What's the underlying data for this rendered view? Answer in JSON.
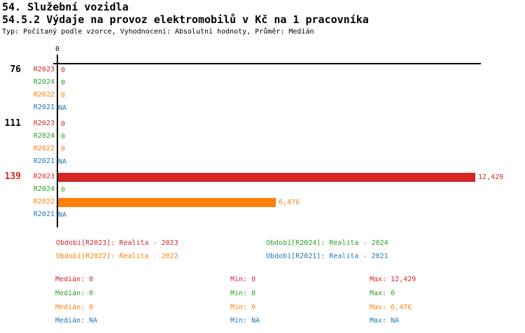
{
  "chart_data": {
    "type": "bar",
    "orientation": "horizontal",
    "title": "54. Služební vozidla",
    "subtitle": "54.5.2 Výdaje na provoz elektromobilů v Kč na 1 pracovníka",
    "meta": "Typ: Počítaný podle vzorce, Vyhodnocení: Absolutní hodnoty, Průměr: Medián",
    "axis": {
      "tick_label": "0",
      "min": 0,
      "max": 12429,
      "grid": false
    },
    "series": [
      {
        "id": "r2023",
        "period": "R2023",
        "legend_label": "Období[R2023]: Realita - 2023",
        "color": "#d62728"
      },
      {
        "id": "r2024",
        "period": "R2024",
        "legend_label": "Období[R2024]: Realita - 2024",
        "color": "#2ca02c"
      },
      {
        "id": "r2022",
        "period": "R2022",
        "legend_label": "Období[R2022]: Realita - 2022",
        "color": "#ff7f0e"
      },
      {
        "id": "r2021",
        "period": "R2021",
        "legend_label": "Období[R2021]: Realita - 2021",
        "color": "#1f77b4"
      }
    ],
    "groups": [
      {
        "label": "76",
        "highlighted": false,
        "rows": [
          {
            "period": "R2023",
            "value": 0,
            "display": "0"
          },
          {
            "period": "R2024",
            "value": 0,
            "display": "0"
          },
          {
            "period": "R2022",
            "value": 0,
            "display": "0"
          },
          {
            "period": "R2021",
            "value": null,
            "display": "NA"
          }
        ]
      },
      {
        "label": "111",
        "highlighted": false,
        "rows": [
          {
            "period": "R2023",
            "value": 0,
            "display": "0"
          },
          {
            "period": "R2024",
            "value": 0,
            "display": "0"
          },
          {
            "period": "R2022",
            "value": 0,
            "display": "0"
          },
          {
            "period": "R2021",
            "value": null,
            "display": "NA"
          }
        ]
      },
      {
        "label": "139",
        "highlighted": true,
        "rows": [
          {
            "period": "R2023",
            "value": 12429,
            "display": "12,429"
          },
          {
            "period": "R2024",
            "value": 0,
            "display": "0"
          },
          {
            "period": "R2022",
            "value": 6476,
            "display": "6,476"
          },
          {
            "period": "R2021",
            "value": null,
            "display": "NA"
          }
        ]
      }
    ],
    "stats_labels": {
      "median": "Medián:",
      "min": "Min:",
      "max": "Max:"
    },
    "stats": [
      {
        "series": "R2023",
        "median": "0",
        "min": "0",
        "max": "12,429"
      },
      {
        "series": "R2024",
        "median": "0",
        "min": "0",
        "max": "0"
      },
      {
        "series": "R2022",
        "median": "0",
        "min": "0",
        "max": "6,476"
      },
      {
        "series": "R2021",
        "median": "NA",
        "min": "NA",
        "max": "NA"
      }
    ],
    "colors": {
      "r2023": "#d62728",
      "r2024": "#2ca02c",
      "r2022": "#ff7f0e",
      "r2021": "#1f77b4",
      "axis": "#000000",
      "text": "#000000",
      "group_highlight": "#d62728"
    }
  }
}
